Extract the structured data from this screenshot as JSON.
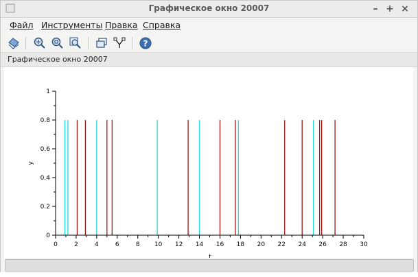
{
  "window": {
    "title": "Графическое окно 20007",
    "controls": [
      "–",
      "+",
      "×"
    ]
  },
  "menu": {
    "items": [
      "Файл",
      "Инструменты",
      "Правка",
      "Справка"
    ]
  },
  "toolbar": {
    "icons": [
      "rotate-icon",
      "zoom-in-icon",
      "zoom-fit-icon",
      "zoom-area-icon",
      "windows-icon",
      "datatip-icon",
      "help-icon"
    ]
  },
  "infobar": {
    "text": "Графическое окно 20007"
  },
  "colors": {
    "cyan": "#22dede",
    "red": "#a31515",
    "axis": "#000000"
  },
  "chart_data": {
    "type": "bar",
    "xlabel": "t",
    "ylabel": "y",
    "xlim": [
      0,
      30
    ],
    "ylim": [
      0,
      1
    ],
    "xticks": [
      "0",
      "2",
      "4",
      "6",
      "8",
      "10",
      "12",
      "14",
      "16",
      "18",
      "20",
      "22",
      "24",
      "26",
      "28",
      "30"
    ],
    "yticks": [
      "0",
      "0.2",
      "0.4",
      "0.6",
      "0.8",
      "1"
    ],
    "series": [
      {
        "color": "cyan",
        "x": [
          0.9,
          1.2,
          4.0,
          9.9,
          14.0,
          17.8,
          25.1
        ],
        "y": 0.8
      },
      {
        "color": "red",
        "x": [
          2.1,
          2.9,
          5.0,
          5.5,
          12.9,
          16.0,
          17.5,
          22.3,
          24.0,
          25.7,
          25.9,
          27.2
        ],
        "y": 0.8
      }
    ]
  }
}
